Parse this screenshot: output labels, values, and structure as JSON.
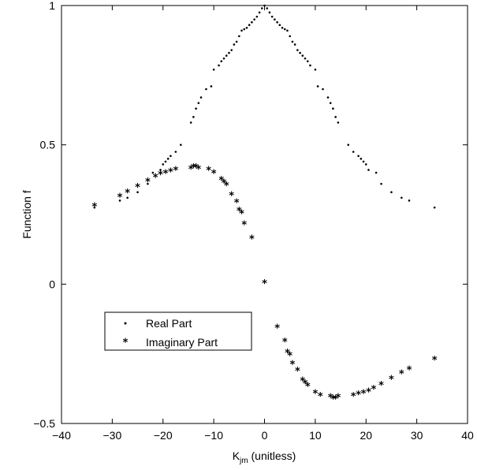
{
  "chart_data": {
    "type": "scatter",
    "title": "",
    "xlabel": "K",
    "xlabel_sub": "jm",
    "xlabel_suffix": " (unitless)",
    "ylabel": "Function f",
    "xlim": [
      -40,
      40
    ],
    "ylim": [
      -0.5,
      1
    ],
    "xticks": [
      -40,
      -30,
      -20,
      -10,
      0,
      10,
      20,
      30,
      40
    ],
    "xtick_labels": [
      "−40",
      "−30",
      "−20",
      "−10",
      "0",
      "10",
      "20",
      "30",
      "40"
    ],
    "yticks": [
      -0.5,
      0,
      0.5,
      1
    ],
    "ytick_labels": [
      "−0.5",
      "0",
      "0.5",
      "1"
    ],
    "grid": false,
    "legend_position": "lower-left",
    "series": [
      {
        "name": "Real Part",
        "marker": "dot",
        "x": [
          -33.5,
          -28.5,
          -27,
          -25,
          -23,
          -22,
          -20.5,
          -20,
          -19.5,
          -19,
          -18.5,
          -17.5,
          -16.5,
          -14.5,
          -14,
          -13.5,
          -13,
          -12.5,
          -11.5,
          -10.5,
          -10,
          -9,
          -8.5,
          -8,
          -7.5,
          -7,
          -6.5,
          -6,
          -5.5,
          -5,
          -4.5,
          -4,
          -3.5,
          -3,
          -2.5,
          -2,
          -1.5,
          -1,
          -0.5,
          0,
          0.5,
          1,
          1.5,
          2,
          2.5,
          3,
          3.5,
          4,
          4.5,
          5,
          5.5,
          6,
          6.5,
          7,
          7.5,
          8,
          8.5,
          9,
          10,
          10.5,
          11.5,
          12.5,
          13,
          13.5,
          14,
          14.5,
          16.5,
          17.5,
          18.5,
          19,
          19.5,
          20,
          20.5,
          22,
          23,
          25,
          27,
          28.5,
          33.5
        ],
        "y": [
          0.275,
          0.3,
          0.31,
          0.33,
          0.36,
          0.4,
          0.41,
          0.43,
          0.44,
          0.45,
          0.46,
          0.475,
          0.5,
          0.58,
          0.6,
          0.63,
          0.65,
          0.67,
          0.7,
          0.71,
          0.77,
          0.785,
          0.8,
          0.81,
          0.82,
          0.83,
          0.84,
          0.86,
          0.87,
          0.89,
          0.91,
          0.915,
          0.92,
          0.93,
          0.94,
          0.95,
          0.96,
          0.975,
          0.99,
          1.0,
          0.99,
          0.975,
          0.96,
          0.95,
          0.94,
          0.93,
          0.92,
          0.915,
          0.91,
          0.89,
          0.87,
          0.86,
          0.84,
          0.83,
          0.82,
          0.81,
          0.8,
          0.785,
          0.77,
          0.71,
          0.7,
          0.67,
          0.65,
          0.63,
          0.6,
          0.58,
          0.5,
          0.475,
          0.46,
          0.45,
          0.44,
          0.43,
          0.41,
          0.4,
          0.36,
          0.33,
          0.31,
          0.3,
          0.275
        ]
      },
      {
        "name": "Imaginary Part",
        "marker": "star",
        "x": [
          -33.5,
          -28.5,
          -27,
          -25,
          -23,
          -21.5,
          -20.5,
          -19.5,
          -18.5,
          -17.5,
          -14.5,
          -14,
          -13.5,
          -13,
          -11,
          -10,
          -8.5,
          -8,
          -7.5,
          -6.5,
          -5.5,
          -5,
          -4.5,
          -4,
          -2.5,
          0,
          2.5,
          4,
          4.5,
          5,
          5.5,
          6.5,
          7.5,
          8,
          8.5,
          10,
          11,
          13,
          13.5,
          14,
          14.5,
          17.5,
          18.5,
          19.5,
          20.5,
          21.5,
          23,
          25,
          27,
          28.5,
          33.5
        ],
        "y": [
          0.275,
          0.31,
          0.325,
          0.345,
          0.365,
          0.38,
          0.39,
          0.395,
          0.4,
          0.405,
          0.41,
          0.415,
          0.415,
          0.41,
          0.405,
          0.395,
          0.37,
          0.36,
          0.35,
          0.315,
          0.29,
          0.26,
          0.25,
          0.21,
          0.16,
          0.0,
          -0.16,
          -0.21,
          -0.25,
          -0.26,
          -0.29,
          -0.315,
          -0.35,
          -0.36,
          -0.37,
          -0.395,
          -0.405,
          -0.41,
          -0.415,
          -0.415,
          -0.41,
          -0.405,
          -0.4,
          -0.395,
          -0.39,
          -0.38,
          -0.365,
          -0.345,
          -0.325,
          -0.31,
          -0.275
        ]
      }
    ]
  }
}
